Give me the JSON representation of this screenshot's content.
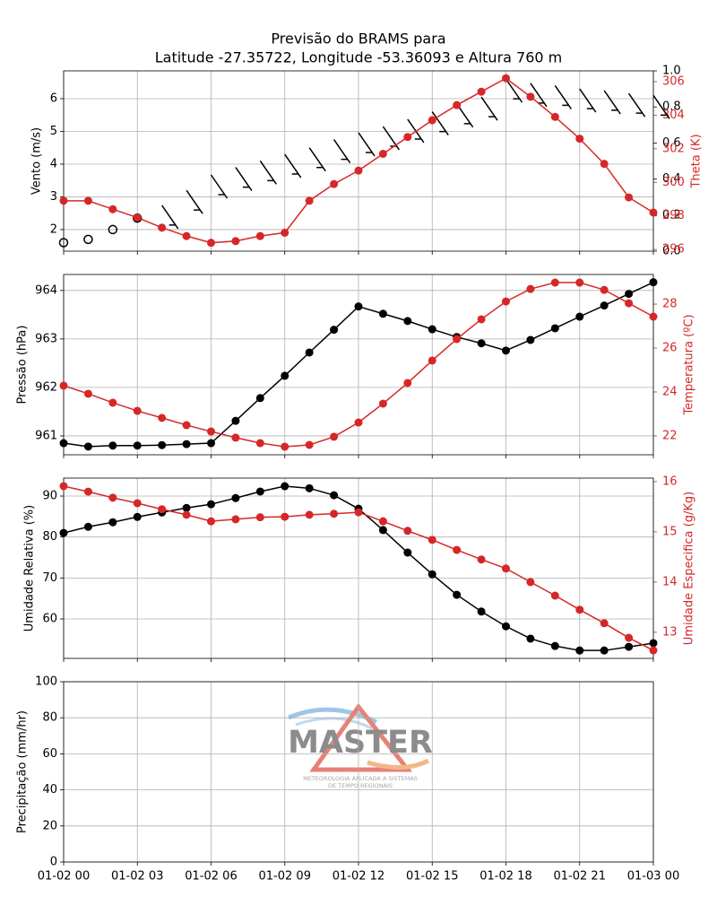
{
  "chart_data": [
    {
      "type": "line",
      "title": "Previsão do BRAMS para",
      "subtitle": "Latitude -27.35722, Longitude -53.36093 e Altura 760 m",
      "ylabel": "Vento (m/s)",
      "y2label": "Theta (K)",
      "ylim": [
        1.34,
        6.85
      ],
      "yticks": [
        2,
        3,
        4,
        5,
        6
      ],
      "y2lim": [
        295.9,
        306.64
      ],
      "y2ticks": [
        296,
        298,
        300,
        302,
        304,
        306
      ],
      "y3lim": [
        0,
        1
      ],
      "y3ticks": [
        {
          "value": 0,
          "label": "0.0"
        },
        {
          "value": 0.2,
          "label": "0.2"
        },
        {
          "value": 0.4,
          "label": "0.4"
        },
        {
          "value": 0.6,
          "label": "0.6"
        },
        {
          "value": 0.8,
          "label": "0.8"
        },
        {
          "value": 1,
          "label": "1.0"
        }
      ],
      "grid": true,
      "series": [
        {
          "color": "#000000",
          "marker": "barb",
          "values": [
            1.6,
            1.7,
            2.0,
            2.35,
            2.74,
            3.2,
            3.67,
            3.9,
            4.1,
            4.3,
            4.5,
            4.75,
            4.96,
            5.15,
            5.37,
            5.6,
            5.84,
            6.05,
            6.6,
            6.47,
            6.4,
            6.3,
            6.25,
            6.16,
            6.1
          ]
        },
        {
          "color": "#d62728",
          "marker": "circle",
          "axis": "y2",
          "values": [
            298.9,
            298.9,
            298.4,
            297.9,
            297.3,
            296.8,
            296.4,
            296.5,
            296.8,
            297.0,
            298.9,
            299.9,
            300.7,
            301.7,
            302.7,
            303.7,
            304.6,
            305.4,
            306.2,
            305.1,
            303.9,
            302.6,
            301.1,
            299.1,
            298.2
          ]
        }
      ]
    },
    {
      "type": "line",
      "ylabel": "Pressão (hPa)",
      "y2label": "Temperatura (ºC)",
      "ylim": [
        960.61,
        964.33
      ],
      "yticks": [
        961,
        962,
        963,
        964
      ],
      "y2lim": [
        21.14,
        29.35
      ],
      "y2ticks": [
        22,
        24,
        26,
        28
      ],
      "grid": true,
      "series": [
        {
          "color": "#000000",
          "marker": "circle",
          "values": [
            960.85,
            960.78,
            960.8,
            960.8,
            960.81,
            960.83,
            960.85,
            961.31,
            961.78,
            962.24,
            962.72,
            963.19,
            963.67,
            963.52,
            963.37,
            963.2,
            963.04,
            962.91,
            962.76,
            962.98,
            963.22,
            963.46,
            963.69,
            963.93,
            964.17
          ]
        },
        {
          "color": "#d62728",
          "marker": "circle",
          "axis": "y2",
          "values": [
            24.29,
            23.92,
            23.51,
            23.14,
            22.82,
            22.49,
            22.2,
            21.92,
            21.67,
            21.51,
            21.59,
            21.96,
            22.61,
            23.47,
            24.41,
            25.43,
            26.41,
            27.31,
            28.12,
            28.69,
            28.98,
            28.98,
            28.65,
            28.04,
            27.43
          ]
        }
      ]
    },
    {
      "type": "line",
      "ylabel": "Umidade Relativa (%)",
      "y2label": "Umidade Especifica (g/Kg)",
      "ylim": [
        50.37,
        94.38
      ],
      "yticks": [
        60,
        70,
        80,
        90
      ],
      "y2lim": [
        12.48,
        16.07
      ],
      "y2ticks": [
        13,
        14,
        15,
        16
      ],
      "grid": true,
      "series": [
        {
          "color": "#000000",
          "marker": "circle",
          "values": [
            81.0,
            82.5,
            83.6,
            84.9,
            86.0,
            87.1,
            88.0,
            89.5,
            91.1,
            92.4,
            91.9,
            90.2,
            86.9,
            81.7,
            76.2,
            70.9,
            65.9,
            61.8,
            58.2,
            55.2,
            53.4,
            52.3,
            52.3,
            53.2,
            54.1
          ]
        },
        {
          "color": "#d62728",
          "marker": "circle",
          "axis": "y2",
          "values": [
            15.91,
            15.8,
            15.68,
            15.57,
            15.45,
            15.34,
            15.21,
            15.25,
            15.29,
            15.3,
            15.34,
            15.36,
            15.39,
            15.21,
            15.02,
            14.84,
            14.64,
            14.45,
            14.27,
            14.0,
            13.73,
            13.45,
            13.18,
            12.89,
            12.64
          ]
        }
      ]
    },
    {
      "type": "line",
      "ylabel": "Precipitação (mm/hr)",
      "ylim": [
        0,
        100
      ],
      "yticks": [
        0,
        20,
        40,
        60,
        80,
        100
      ],
      "grid": true,
      "x": [
        "01-02 00",
        "01-02 01",
        "01-02 02",
        "01-02 03",
        "01-02 04",
        "01-02 05",
        "01-02 06",
        "01-02 07",
        "01-02 08",
        "01-02 09",
        "01-02 10",
        "01-02 11",
        "01-02 12",
        "01-02 13",
        "01-02 14",
        "01-02 15",
        "01-02 16",
        "01-02 17",
        "01-02 18",
        "01-02 19",
        "01-02 20",
        "01-02 21",
        "01-02 22",
        "01-02 23",
        "01-03 00"
      ],
      "xlim": [
        "01-02 00",
        "01-03 00"
      ],
      "xticks": [
        "01-02 00",
        "01-02 03",
        "01-02 06",
        "01-02 09",
        "01-02 12",
        "01-02 15",
        "01-02 18",
        "01-02 21",
        "01-03 00"
      ],
      "series": []
    }
  ],
  "logo": {
    "name": "MASTER",
    "tagline": [
      "METEOROLOGIA APLICADA A SISTEMAS",
      "DE TEMPO REGIONAIS"
    ]
  }
}
